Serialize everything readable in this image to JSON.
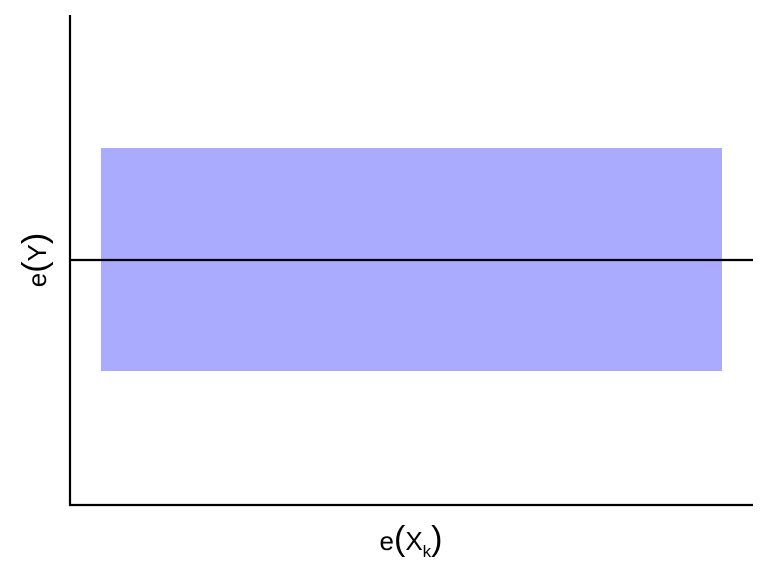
{
  "diagram": {
    "type": "partial-residual-plot",
    "x_label": {
      "func": "e",
      "open_paren": "(",
      "var": "X",
      "subscript": "k",
      "close_paren": ")"
    },
    "y_label": {
      "func": "e",
      "open_paren": "(",
      "var": "Y",
      "close_paren": ")"
    },
    "band_color": "#aaaaff",
    "line_color": "#000000",
    "axis_color": "#000000",
    "background_color": "#ffffff"
  }
}
